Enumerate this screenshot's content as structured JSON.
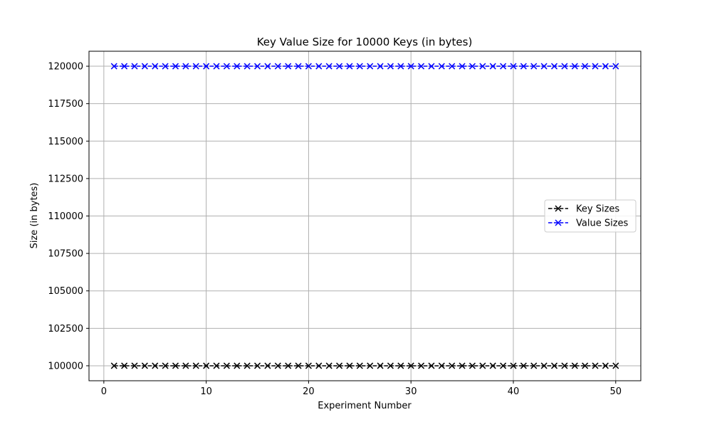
{
  "chart_data": {
    "type": "line",
    "title": "Key Value Size for 10000 Keys (in bytes)",
    "xlabel": "Experiment Number",
    "ylabel": "Size (in bytes)",
    "xlim": [
      -1.45,
      52.45
    ],
    "ylim": [
      99000,
      121000
    ],
    "xticks": [
      0,
      10,
      20,
      30,
      40,
      50
    ],
    "yticks": [
      100000,
      102500,
      105000,
      107500,
      110000,
      112500,
      115000,
      117500,
      120000
    ],
    "grid": true,
    "legend_position": "center-right",
    "x": [
      1,
      2,
      3,
      4,
      5,
      6,
      7,
      8,
      9,
      10,
      11,
      12,
      13,
      14,
      15,
      16,
      17,
      18,
      19,
      20,
      21,
      22,
      23,
      24,
      25,
      26,
      27,
      28,
      29,
      30,
      31,
      32,
      33,
      34,
      35,
      36,
      37,
      38,
      39,
      40,
      41,
      42,
      43,
      44,
      45,
      46,
      47,
      48,
      49,
      50
    ],
    "series": [
      {
        "name": "Key Sizes",
        "color": "#000000",
        "marker": "x",
        "line_style": "dashed",
        "values": [
          100000,
          100000,
          100000,
          100000,
          100000,
          100000,
          100000,
          100000,
          100000,
          100000,
          100000,
          100000,
          100000,
          100000,
          100000,
          100000,
          100000,
          100000,
          100000,
          100000,
          100000,
          100000,
          100000,
          100000,
          100000,
          100000,
          100000,
          100000,
          100000,
          100000,
          100000,
          100000,
          100000,
          100000,
          100000,
          100000,
          100000,
          100000,
          100000,
          100000,
          100000,
          100000,
          100000,
          100000,
          100000,
          100000,
          100000,
          100000,
          100000,
          100000
        ]
      },
      {
        "name": "Value Sizes",
        "color": "#0000ff",
        "marker": "x",
        "line_style": "dashed",
        "values": [
          120000,
          120000,
          120000,
          120000,
          120000,
          120000,
          120000,
          120000,
          120000,
          120000,
          120000,
          120000,
          120000,
          120000,
          120000,
          120000,
          120000,
          120000,
          120000,
          120000,
          120000,
          120000,
          120000,
          120000,
          120000,
          120000,
          120000,
          120000,
          120000,
          120000,
          120000,
          120000,
          120000,
          120000,
          120000,
          120000,
          120000,
          120000,
          120000,
          120000,
          120000,
          120000,
          120000,
          120000,
          120000,
          120000,
          120000,
          120000,
          120000,
          120000
        ]
      }
    ]
  }
}
